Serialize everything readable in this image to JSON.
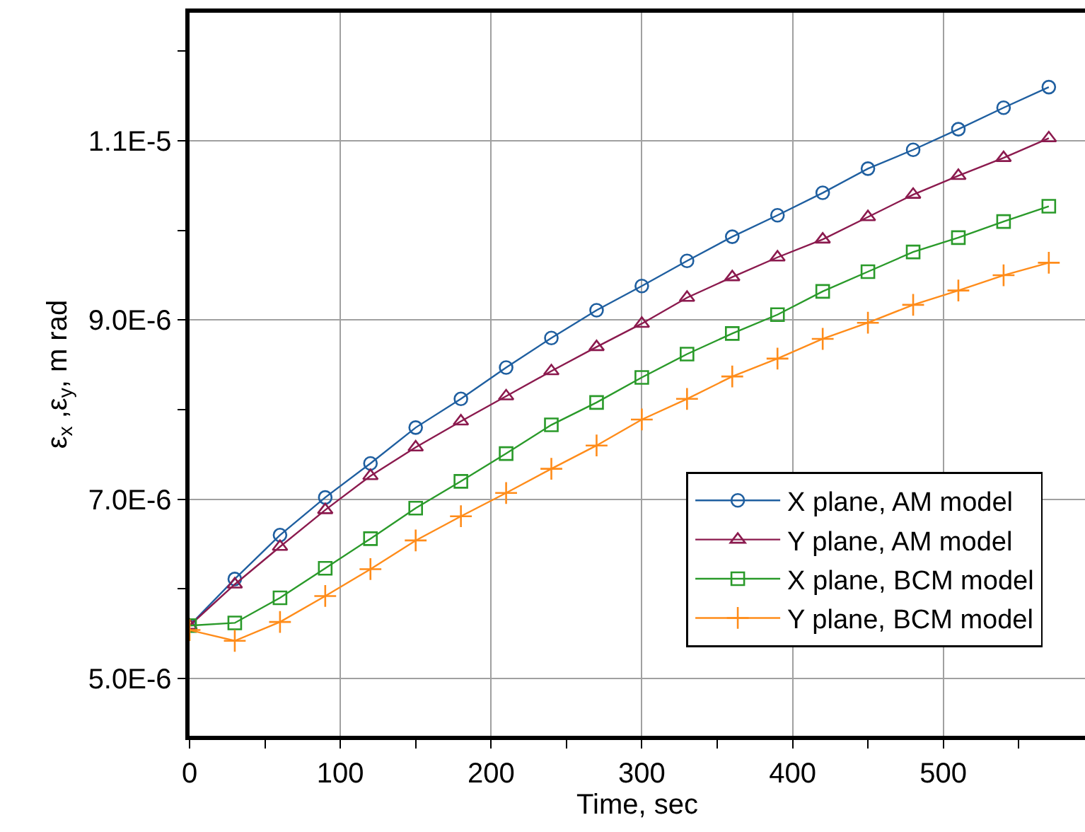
{
  "chart_data": {
    "type": "line",
    "xlabel": "Time, sec",
    "ylabel": "ε$_{x}$ ,ε$_{y}$, m rad",
    "x": [
      0,
      30,
      60,
      90,
      120,
      150,
      180,
      210,
      240,
      270,
      300,
      330,
      360,
      390,
      420,
      450,
      480,
      510,
      540,
      570
    ],
    "xlim": [
      0,
      594
    ],
    "xticks": [
      0,
      {
        "value": 50,
        "label": null
      },
      100,
      {
        "value": 150,
        "label": null
      },
      200,
      {
        "value": 250,
        "label": null
      },
      300,
      {
        "value": 350,
        "label": null
      },
      400,
      {
        "value": 450,
        "label": null
      },
      500,
      {
        "value": 550,
        "label": null
      }
    ],
    "ylim": [
      4.36e-06,
      1.243e-05
    ],
    "yticks": [
      {
        "value": 5e-06,
        "label": "5.0E-6"
      },
      {
        "value": 6e-06,
        "label": null
      },
      {
        "value": 7e-06,
        "label": "7.0E-6"
      },
      {
        "value": 8e-06,
        "label": null
      },
      {
        "value": 9e-06,
        "label": "9.0E-6"
      },
      {
        "value": 1e-05,
        "label": null
      },
      {
        "value": 1.1e-05,
        "label": "1.1E-5"
      },
      {
        "value": 1.2e-05,
        "label": null
      }
    ],
    "grid": true,
    "legend": "bottom right",
    "line_style": "solid",
    "series": [
      {
        "name": "X plane, AM model",
        "color": "#1f5fa0",
        "marker": "circle",
        "values": [
          5.59e-06,
          6.11e-06,
          6.6e-06,
          7.02e-06,
          7.4e-06,
          7.8e-06,
          8.12e-06,
          8.47e-06,
          8.8e-06,
          9.11e-06,
          9.38e-06,
          9.66e-06,
          9.93e-06,
          1.017e-05,
          1.042e-05,
          1.069e-05,
          1.09e-05,
          1.113e-05,
          1.137e-05,
          1.16e-05
        ]
      },
      {
        "name": "Y plane, AM model",
        "color": "#8b1a4e",
        "marker": "triangle",
        "values": [
          5.59e-06,
          6.05e-06,
          6.47e-06,
          6.88e-06,
          7.26e-06,
          7.58e-06,
          7.87e-06,
          8.15e-06,
          8.43e-06,
          8.7e-06,
          8.96e-06,
          9.25e-06,
          9.48e-06,
          9.7e-06,
          9.9e-06,
          1.015e-05,
          1.04e-05,
          1.061e-05,
          1.081e-05,
          1.103e-05
        ]
      },
      {
        "name": "X plane, BCM model",
        "color": "#2a9a2a",
        "marker": "square",
        "values": [
          5.59e-06,
          5.62e-06,
          5.9e-06,
          6.23e-06,
          6.56e-06,
          6.9e-06,
          7.2e-06,
          7.51e-06,
          7.83e-06,
          8.08e-06,
          8.36e-06,
          8.62e-06,
          8.85e-06,
          9.06e-06,
          9.32e-06,
          9.54e-06,
          9.76e-06,
          9.92e-06,
          1.01e-05,
          1.027e-05
        ]
      },
      {
        "name": "Y plane, BCM model",
        "color": "#ff8c1a",
        "marker": "cross",
        "values": [
          5.54e-06,
          5.42e-06,
          5.63e-06,
          5.92e-06,
          6.22e-06,
          6.54e-06,
          6.81e-06,
          7.07e-06,
          7.34e-06,
          7.6e-06,
          7.89e-06,
          8.12e-06,
          8.37e-06,
          8.57e-06,
          8.79e-06,
          8.97e-06,
          9.17e-06,
          9.33e-06,
          9.5e-06,
          9.64e-06
        ]
      }
    ]
  }
}
